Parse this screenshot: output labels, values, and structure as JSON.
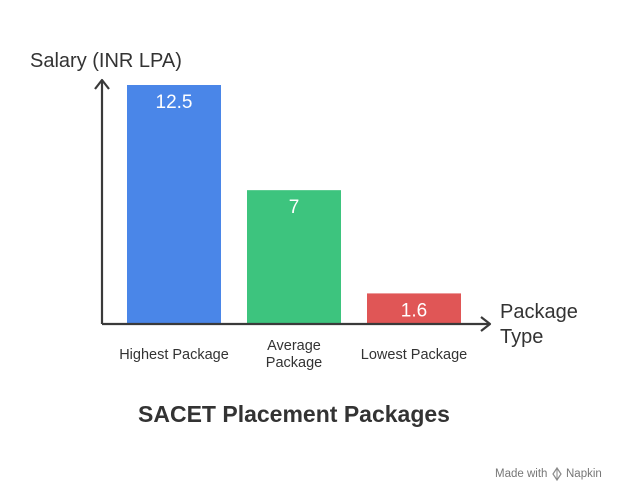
{
  "chart_data": {
    "type": "bar",
    "title": "SACET Placement Packages",
    "ylabel": "Salary (INR LPA)",
    "xlabel": [
      "Package",
      "Type"
    ],
    "categories": [
      [
        "Highest Package"
      ],
      [
        "Average",
        "Package"
      ],
      [
        "Lowest Package"
      ]
    ],
    "values": [
      12.5,
      7,
      1.6
    ],
    "value_labels": [
      "12.5",
      "7",
      "1.6"
    ],
    "colors": [
      "#4a86e8",
      "#3dc47e",
      "#e05656"
    ],
    "ylim": [
      0,
      12.5
    ],
    "grid": false,
    "legend": "none"
  },
  "footer": {
    "prefix": "Made with",
    "brand": "Napkin"
  },
  "icons": [
    "napkin-logo-icon"
  ]
}
